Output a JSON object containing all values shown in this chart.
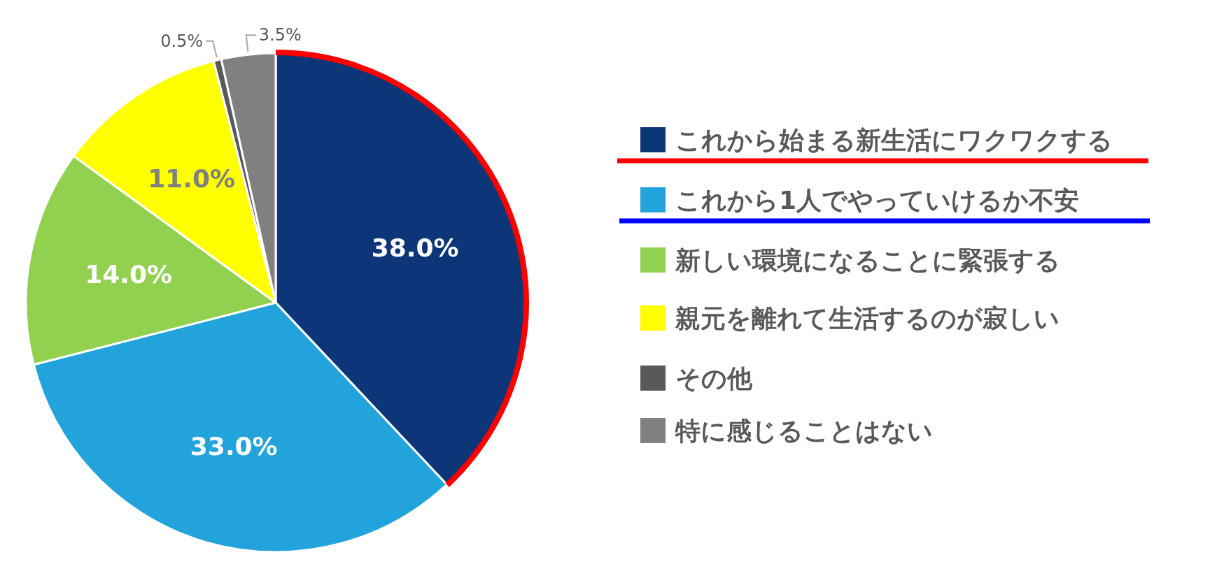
{
  "chart_data": {
    "type": "pie",
    "categories": [
      "これから始まる新生活にワクワクする",
      "これから1人でやっていけるか不安",
      "新しい環境になることに緊張する",
      "親元を離れて生活するのが寂しい",
      "その他",
      "特に感じることはない"
    ],
    "values": [
      38.0,
      33.0,
      14.0,
      11.0,
      0.5,
      3.5
    ],
    "colors": [
      "#0d3678",
      "#22a3dc",
      "#92d050",
      "#ffff00",
      "#595959",
      "#808080"
    ],
    "value_labels": [
      "38.0%",
      "33.0%",
      "14.0%",
      "11.0%",
      "0.5%",
      "3.5%"
    ],
    "legend": "right"
  }
}
